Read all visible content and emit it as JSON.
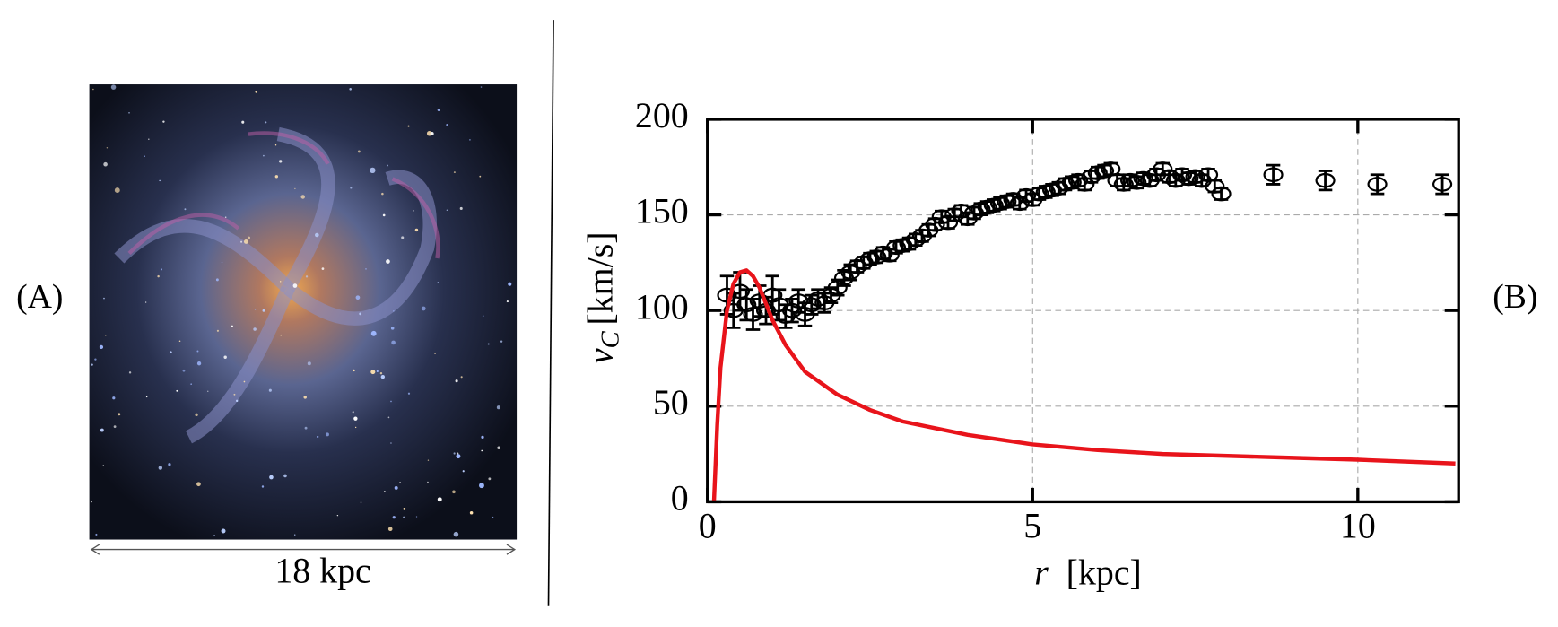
{
  "panels": {
    "a_label": "(A)",
    "b_label": "(B)",
    "scale_bar": "18 kpc"
  },
  "chart_data": {
    "type": "scatter",
    "y_label_symbol": "v",
    "y_label_subscript": "C",
    "y_label_unit": "[km/s]",
    "x_label_symbol": "r",
    "x_label_unit": "[kpc]",
    "xlim": [
      0,
      11.55
    ],
    "ylim": [
      0,
      200
    ],
    "xticks": [
      0,
      5,
      10
    ],
    "yticks": [
      0,
      50,
      100,
      150,
      200
    ],
    "grid": true,
    "points": {
      "color": "#000000",
      "x": [
        0.3,
        0.4,
        0.5,
        0.6,
        0.7,
        0.8,
        0.9,
        1.0,
        1.1,
        1.2,
        1.3,
        1.4,
        1.5,
        1.6,
        1.7,
        1.8,
        1.9,
        2.0,
        2.1,
        2.2,
        2.3,
        2.4,
        2.5,
        2.6,
        2.7,
        2.8,
        2.9,
        3.0,
        3.1,
        3.2,
        3.3,
        3.4,
        3.5,
        3.6,
        3.7,
        3.8,
        3.9,
        4.0,
        4.1,
        4.2,
        4.3,
        4.4,
        4.5,
        4.6,
        4.7,
        4.8,
        4.9,
        5.0,
        5.1,
        5.2,
        5.3,
        5.4,
        5.5,
        5.6,
        5.7,
        5.8,
        5.9,
        6.0,
        6.1,
        6.2,
        6.3,
        6.4,
        6.5,
        6.6,
        6.7,
        6.8,
        6.9,
        7.0,
        7.1,
        7.2,
        7.3,
        7.4,
        7.5,
        7.6,
        7.7,
        7.8,
        7.9,
        8.7,
        9.5,
        10.3,
        11.3
      ],
      "values": [
        108,
        100,
        110,
        103,
        98,
        105,
        100,
        108,
        103,
        97,
        100,
        105,
        98,
        103,
        106,
        104,
        108,
        112,
        117,
        120,
        123,
        125,
        127,
        128,
        130,
        129,
        133,
        134,
        135,
        137,
        139,
        142,
        145,
        149,
        146,
        150,
        152,
        148,
        151,
        153,
        154,
        155,
        156,
        157,
        158,
        156,
        160,
        158,
        161,
        162,
        163,
        164,
        166,
        167,
        168,
        166,
        170,
        172,
        173,
        174,
        168,
        166,
        168,
        167,
        169,
        168,
        171,
        174,
        170,
        168,
        171,
        169,
        170,
        168,
        171,
        165,
        161,
        171,
        168,
        166,
        166
      ],
      "errors": [
        10,
        9,
        10,
        8,
        8,
        8,
        7,
        10,
        8,
        6,
        6,
        6,
        6,
        5,
        5,
        5,
        4,
        4,
        4,
        4,
        3,
        3,
        3,
        3,
        3,
        3,
        3,
        3,
        3,
        3,
        3,
        3,
        3,
        3,
        3,
        3,
        3,
        3,
        3,
        3,
        3,
        3,
        3,
        3,
        3,
        3,
        3,
        3,
        3,
        3,
        3,
        3,
        3,
        3,
        3,
        3,
        3,
        3,
        3,
        3,
        3,
        3,
        3,
        3,
        3,
        3,
        3,
        3,
        3,
        3,
        3,
        3,
        3,
        3,
        3,
        3,
        3,
        5,
        5,
        5,
        5
      ]
    },
    "curve": {
      "color": "#e8141b",
      "x": [
        0.1,
        0.15,
        0.2,
        0.3,
        0.4,
        0.5,
        0.6,
        0.7,
        0.8,
        1,
        1.2,
        1.5,
        2,
        2.5,
        3,
        4,
        5,
        6,
        7,
        8,
        9,
        10,
        11.5
      ],
      "values": [
        0,
        40,
        70,
        100,
        114,
        120,
        121,
        118,
        112,
        95,
        82,
        68,
        56,
        48,
        42,
        35,
        30,
        27,
        25,
        24,
        23,
        22,
        20
      ]
    }
  }
}
